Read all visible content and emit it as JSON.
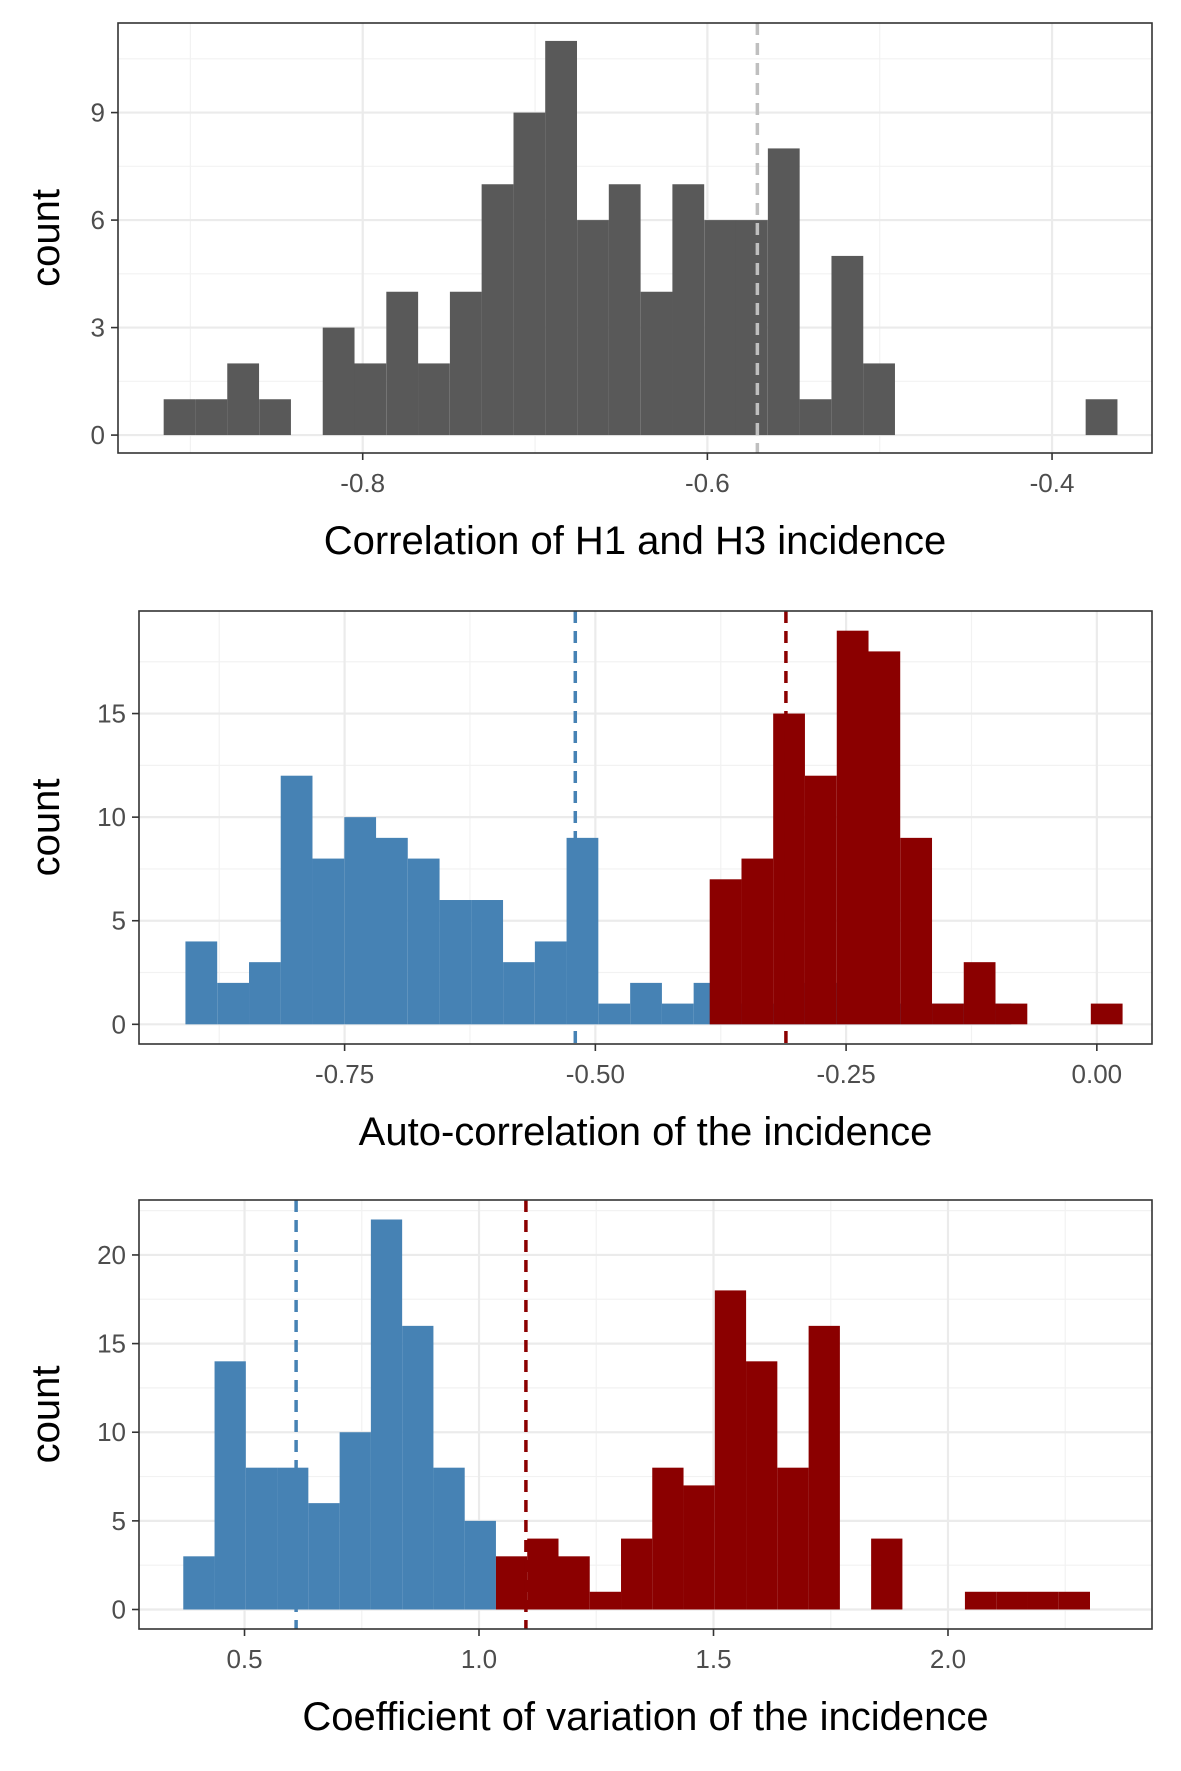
{
  "chart_data": [
    {
      "type": "bar",
      "title": "",
      "xlabel": "Correlation of H1 and H3 incidence",
      "ylabel": "count",
      "xlim": [
        -0.942,
        -0.342
      ],
      "ylim": [
        -0.5,
        11.5
      ],
      "xticks": [
        -0.8,
        -0.6,
        -0.4
      ],
      "xtick_labels": [
        "-0.8",
        "-0.6",
        "-0.4"
      ],
      "yticks": [
        0,
        3,
        6,
        9
      ],
      "ytick_labels": [
        "0",
        "3",
        "6",
        "9"
      ],
      "grid": true,
      "legend": "none",
      "series": [
        {
          "color": "#595959",
          "bin_width": 0.01845,
          "bins": [
            {
              "x0": -0.9155,
              "count": 1
            },
            {
              "x0": -0.897,
              "count": 1
            },
            {
              "x0": -0.8786,
              "count": 2
            },
            {
              "x0": -0.8601,
              "count": 1
            },
            {
              "x0": -0.8417,
              "count": 0
            },
            {
              "x0": -0.8232,
              "count": 3
            },
            {
              "x0": -0.8048,
              "count": 2
            },
            {
              "x0": -0.7863,
              "count": 4
            },
            {
              "x0": -0.7679,
              "count": 2
            },
            {
              "x0": -0.7494,
              "count": 4
            },
            {
              "x0": -0.731,
              "count": 7
            },
            {
              "x0": -0.7125,
              "count": 9
            },
            {
              "x0": -0.6941,
              "count": 11
            },
            {
              "x0": -0.6756,
              "count": 6
            },
            {
              "x0": -0.6572,
              "count": 7
            },
            {
              "x0": -0.6387,
              "count": 4
            },
            {
              "x0": -0.6203,
              "count": 7
            },
            {
              "x0": -0.6018,
              "count": 6
            },
            {
              "x0": -0.5834,
              "count": 6
            },
            {
              "x0": -0.5649,
              "count": 8
            },
            {
              "x0": -0.5465,
              "count": 1
            },
            {
              "x0": -0.528,
              "count": 5
            },
            {
              "x0": -0.5096,
              "count": 2
            },
            {
              "x0": -0.3805,
              "count": 1
            }
          ]
        }
      ],
      "vlines": [
        {
          "x": -0.571,
          "color": "#bfbfbf"
        }
      ]
    },
    {
      "type": "bar",
      "title": "",
      "xlabel": "Auto-correlation of the incidence",
      "ylabel": "count",
      "xlim": [
        -0.955,
        0.055
      ],
      "ylim": [
        -0.95,
        19.95
      ],
      "xticks": [
        -0.75,
        -0.5,
        -0.25,
        0.0
      ],
      "xtick_labels": [
        "-0.75",
        "-0.50",
        "-0.25",
        "0.00"
      ],
      "yticks": [
        0,
        5,
        10,
        15
      ],
      "ytick_labels": [
        "0",
        "5",
        "10",
        "15"
      ],
      "grid": true,
      "legend": "none",
      "series": [
        {
          "color": "#4682b4",
          "bin_width": 0.03167,
          "bins": [
            {
              "x0": -0.9087,
              "count": 4
            },
            {
              "x0": -0.877,
              "count": 2
            },
            {
              "x0": -0.8453,
              "count": 3
            },
            {
              "x0": -0.8137,
              "count": 12
            },
            {
              "x0": -0.782,
              "count": 8
            },
            {
              "x0": -0.7503,
              "count": 10
            },
            {
              "x0": -0.7187,
              "count": 9
            },
            {
              "x0": -0.687,
              "count": 8
            },
            {
              "x0": -0.6553,
              "count": 6
            },
            {
              "x0": -0.6237,
              "count": 6
            },
            {
              "x0": -0.592,
              "count": 3
            },
            {
              "x0": -0.5603,
              "count": 4
            },
            {
              "x0": -0.5287,
              "count": 9
            },
            {
              "x0": -0.497,
              "count": 1
            },
            {
              "x0": -0.4653,
              "count": 2
            },
            {
              "x0": -0.4337,
              "count": 1
            },
            {
              "x0": -0.402,
              "count": 2
            },
            {
              "x0": -0.3703,
              "count": 1
            },
            {
              "x0": -0.3387,
              "count": 1
            },
            {
              "x0": -0.307,
              "count": 2
            },
            {
              "x0": -0.2753,
              "count": 2
            },
            {
              "x0": -0.2437,
              "count": 1
            },
            {
              "x0": -0.212,
              "count": 1
            },
            {
              "x0": -0.1803,
              "count": 1
            },
            {
              "x0": -0.1487,
              "count": 1
            },
            {
              "x0": -0.117,
              "count": 1
            }
          ]
        },
        {
          "color": "#8b0000",
          "bin_width": 0.03167,
          "bins": [
            {
              "x0": -0.386,
              "count": 7
            },
            {
              "x0": -0.3543,
              "count": 8
            },
            {
              "x0": -0.3227,
              "count": 15
            },
            {
              "x0": -0.291,
              "count": 12
            },
            {
              "x0": -0.2593,
              "count": 19
            },
            {
              "x0": -0.2277,
              "count": 18
            },
            {
              "x0": -0.196,
              "count": 9
            },
            {
              "x0": -0.1643,
              "count": 1
            },
            {
              "x0": -0.1327,
              "count": 3
            },
            {
              "x0": -0.101,
              "count": 1
            },
            {
              "x0": -0.0693,
              "count": 0
            },
            {
              "x0": -0.0377,
              "count": 0
            },
            {
              "x0": -0.006,
              "count": 1
            }
          ]
        }
      ],
      "vlines": [
        {
          "x": -0.52,
          "color": "#4682b4"
        },
        {
          "x": -0.31,
          "color": "#8b0000"
        }
      ]
    },
    {
      "type": "bar",
      "title": "",
      "xlabel": "Coefficient of variation of the incidence",
      "ylabel": "count",
      "xlim": [
        0.275,
        2.435
      ],
      "ylim": [
        -1.1,
        23.1
      ],
      "xticks": [
        0.5,
        1.0,
        1.5,
        2.0
      ],
      "xtick_labels": [
        "0.5",
        "1.0",
        "1.5",
        "2.0"
      ],
      "yticks": [
        0,
        5,
        10,
        15,
        20
      ],
      "ytick_labels": [
        "0",
        "5",
        "10",
        "15",
        "20"
      ],
      "grid": true,
      "legend": "none",
      "series": [
        {
          "color": "#4682b4",
          "bin_width": 0.0667,
          "bins": [
            {
              "x0": 0.3694,
              "count": 3
            },
            {
              "x0": 0.4361,
              "count": 14
            },
            {
              "x0": 0.5028,
              "count": 8
            },
            {
              "x0": 0.5694,
              "count": 8
            },
            {
              "x0": 0.6361,
              "count": 6
            },
            {
              "x0": 0.7028,
              "count": 10
            },
            {
              "x0": 0.7694,
              "count": 22
            },
            {
              "x0": 0.8361,
              "count": 16
            },
            {
              "x0": 0.9028,
              "count": 8
            },
            {
              "x0": 0.9694,
              "count": 5
            }
          ]
        },
        {
          "color": "#8b0000",
          "bin_width": 0.0667,
          "bins": [
            {
              "x0": 1.0361,
              "count": 3
            },
            {
              "x0": 1.1028,
              "count": 4
            },
            {
              "x0": 1.1694,
              "count": 3
            },
            {
              "x0": 1.2361,
              "count": 1
            },
            {
              "x0": 1.3028,
              "count": 4
            },
            {
              "x0": 1.3694,
              "count": 8
            },
            {
              "x0": 1.4361,
              "count": 7
            },
            {
              "x0": 1.5028,
              "count": 18
            },
            {
              "x0": 1.5694,
              "count": 14
            },
            {
              "x0": 1.6361,
              "count": 8
            },
            {
              "x0": 1.7028,
              "count": 16
            },
            {
              "x0": 1.7694,
              "count": 0
            },
            {
              "x0": 1.8361,
              "count": 4
            },
            {
              "x0": 1.9028,
              "count": 0
            },
            {
              "x0": 1.9694,
              "count": 0
            },
            {
              "x0": 2.0361,
              "count": 1
            },
            {
              "x0": 2.1028,
              "count": 1
            },
            {
              "x0": 2.1694,
              "count": 1
            },
            {
              "x0": 2.2361,
              "count": 1
            }
          ]
        }
      ],
      "vlines": [
        {
          "x": 0.61,
          "color": "#4682b4"
        },
        {
          "x": 1.1,
          "color": "#8b0000"
        }
      ]
    }
  ]
}
